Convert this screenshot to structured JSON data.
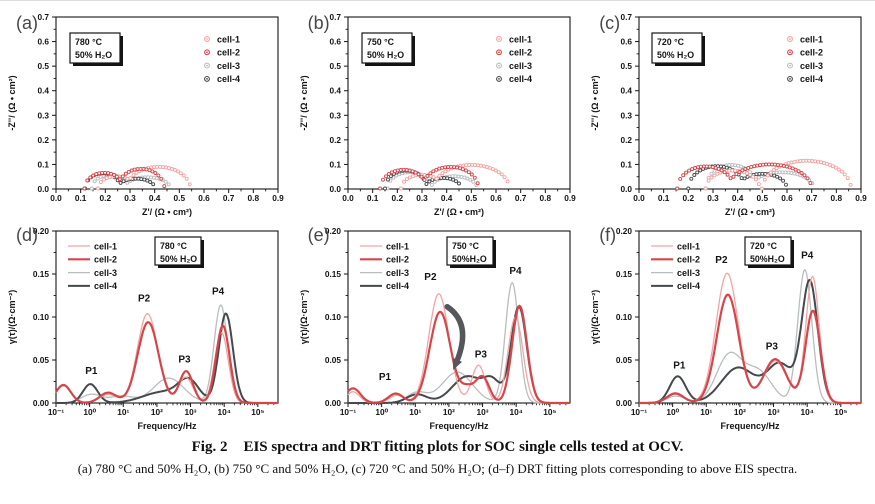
{
  "figure": {
    "caption_fig": "Fig. 2",
    "caption_title": "EIS spectra and DRT fitting plots for SOC single cells tested at OCV.",
    "caption_sub": "(a) 780 °C and 50% H₂O, (b) 750 °C and 50% H₂O, (c) 720 °C and 50% H₂O; (d–f) DRT fitting plots corresponding to above EIS spectra."
  },
  "colors": {
    "cell1": "#F2A5A3",
    "cell2": "#D5464B",
    "cell3": "#B8BDBF",
    "cell4": "#45494D",
    "arrow": "#54585C",
    "axis": "#141414"
  },
  "chart_data": [
    {
      "id": "a",
      "type": "scatter",
      "panel_label": "(a)",
      "title": "EIS spectra at 780 °C, 50% H₂O",
      "condition": [
        "780 °C",
        "50% H₂O"
      ],
      "box_x": 70,
      "xlabel": "Z'/ (Ω • cm²)",
      "ylabel": "-Z''/ (Ω • cm²)",
      "xlim": [
        0,
        0.9
      ],
      "ylim": [
        0,
        0.7
      ],
      "xticks": [
        "0.0",
        "0.1",
        "0.2",
        "0.3",
        "0.4",
        "0.5",
        "0.6",
        "0.7",
        "0.8",
        "0.9"
      ],
      "yticks": [
        "0.0",
        "0.1",
        "0.2",
        "0.3",
        "0.4",
        "0.5",
        "0.6",
        "0.7"
      ],
      "series": [
        {
          "name": "cell-1",
          "color": "cell1",
          "humps": [
            [
              0.245,
              0.075,
              0.052
            ],
            [
              0.415,
              0.13,
              0.09
            ]
          ]
        },
        {
          "name": "cell-2",
          "color": "cell2",
          "humps": [
            [
              0.195,
              0.08,
              0.066
            ],
            [
              0.345,
              0.095,
              0.082
            ]
          ]
        },
        {
          "name": "cell-3",
          "color": "cell3",
          "humps": [
            [
              0.22,
              0.075,
              0.058
            ],
            [
              0.37,
              0.095,
              0.048
            ]
          ]
        },
        {
          "name": "cell-4",
          "color": "cell4",
          "humps": [
            [
              0.19,
              0.072,
              0.064
            ],
            [
              0.325,
              0.078,
              0.042
            ]
          ]
        }
      ]
    },
    {
      "id": "b",
      "type": "scatter",
      "panel_label": "(b)",
      "title": "EIS spectra at 750 °C, 50% H₂O",
      "condition": [
        "750 °C",
        "50% H₂O"
      ],
      "box_x": 70,
      "xlabel": "Z'/ (Ω • cm²)",
      "ylabel": "-Z''/ (Ω • cm²)",
      "xlim": [
        0,
        0.9
      ],
      "ylim": [
        0,
        0.7
      ],
      "xticks": [
        "0.0",
        "0.1",
        "0.2",
        "0.3",
        "0.4",
        "0.5",
        "0.6",
        "0.7",
        "0.8",
        "0.9"
      ],
      "yticks": [
        "0.0",
        "0.1",
        "0.2",
        "0.3",
        "0.4",
        "0.5",
        "0.6",
        "0.7"
      ],
      "series": [
        {
          "name": "cell-1",
          "color": "cell1",
          "humps": [
            [
              0.3,
              0.085,
              0.058
            ],
            [
              0.5,
              0.155,
              0.098
            ]
          ]
        },
        {
          "name": "cell-2",
          "color": "cell2",
          "humps": [
            [
              0.225,
              0.095,
              0.078
            ],
            [
              0.415,
              0.115,
              0.09
            ]
          ]
        },
        {
          "name": "cell-3",
          "color": "cell3",
          "humps": [
            [
              0.25,
              0.09,
              0.068
            ],
            [
              0.43,
              0.095,
              0.052
            ]
          ]
        },
        {
          "name": "cell-4",
          "color": "cell4",
          "humps": [
            [
              0.235,
              0.085,
              0.075
            ],
            [
              0.385,
              0.075,
              0.045
            ]
          ]
        }
      ]
    },
    {
      "id": "c",
      "type": "scatter",
      "panel_label": "(c)",
      "title": "EIS spectra at 720 °C, 50% H₂O",
      "condition": [
        "720 °C",
        "50% H₂O"
      ],
      "box_x": 69,
      "xlabel": "Z'/ (Ω • cm²)",
      "ylabel": "-Z''/ (Ω • cm²)",
      "xlim": [
        0,
        0.9
      ],
      "ylim": [
        0,
        0.7
      ],
      "xticks": [
        "0.0",
        "0.1",
        "0.2",
        "0.3",
        "0.4",
        "0.5",
        "0.6",
        "0.7",
        "0.8",
        "0.9"
      ],
      "yticks": [
        "0.0",
        "0.1",
        "0.2",
        "0.3",
        "0.4",
        "0.5",
        "0.6",
        "0.7"
      ],
      "series": [
        {
          "name": "cell-1",
          "color": "cell1",
          "humps": [
            [
              0.38,
              0.11,
              0.075
            ],
            [
              0.68,
              0.18,
              0.115
            ]
          ]
        },
        {
          "name": "cell-2",
          "color": "cell2",
          "humps": [
            [
              0.27,
              0.115,
              0.092
            ],
            [
              0.53,
              0.17,
              0.1
            ]
          ]
        },
        {
          "name": "cell-3",
          "color": "cell3",
          "humps": [
            [
              0.375,
              0.105,
              0.098
            ],
            [
              0.58,
              0.13,
              0.068
            ]
          ]
        },
        {
          "name": "cell-4",
          "color": "cell4",
          "humps": [
            [
              0.315,
              0.115,
              0.093
            ],
            [
              0.5,
              0.1,
              0.062
            ]
          ]
        }
      ]
    },
    {
      "id": "d",
      "type": "line",
      "panel_label": "(d)",
      "title": "DRT fitting at 780 °C, 50% H₂O",
      "condition": [
        "780 °C",
        "50% H₂O"
      ],
      "box_x": 155,
      "xlabel": "Frequency/Hz",
      "ylabel": "γ(τ)/(Ω·cm⁻²)",
      "xrange": [
        -1,
        5.6
      ],
      "ylim": [
        0,
        0.2
      ],
      "xticks": [
        "10⁻¹",
        "10⁰",
        "10¹",
        "10²",
        "10³",
        "10⁴",
        "10⁵"
      ],
      "yticks": [
        "0.00",
        "0.05",
        "0.10",
        "0.15",
        "0.20"
      ],
      "peak_labels": [
        {
          "text": "P1",
          "x": 0.05,
          "y": 0.034
        },
        {
          "text": "P2",
          "x": 1.62,
          "y": 0.118
        },
        {
          "text": "P3",
          "x": 2.82,
          "y": 0.047
        },
        {
          "text": "P4",
          "x": 3.82,
          "y": 0.126
        }
      ],
      "series": [
        {
          "name": "cell-1",
          "color": "cell1",
          "w": 1.3,
          "peaks": [
            [
              -0.78,
              0.22,
              0.02
            ],
            [
              0.55,
              0.25,
              0.01
            ],
            [
              1.72,
              0.3,
              0.104
            ],
            [
              2.85,
              0.22,
              0.03
            ],
            [
              3.92,
              0.2,
              0.082
            ]
          ]
        },
        {
          "name": "cell-2",
          "color": "cell2",
          "w": 2.2,
          "peaks": [
            [
              -0.78,
              0.22,
              0.021
            ],
            [
              0.55,
              0.25,
              0.012
            ],
            [
              1.74,
              0.31,
              0.094
            ],
            [
              2.87,
              0.2,
              0.037
            ],
            [
              3.96,
              0.2,
              0.09
            ]
          ]
        },
        {
          "name": "cell-3",
          "color": "cell3",
          "w": 1.3,
          "peaks": [
            [
              0.05,
              0.3,
              0.01
            ],
            [
              0.95,
              0.35,
              0.008
            ],
            [
              2.35,
              0.45,
              0.029
            ],
            [
              3.9,
              0.2,
              0.114
            ]
          ]
        },
        {
          "name": "cell-4",
          "color": "cell4",
          "w": 2.0,
          "peaks": [
            [
              0.02,
              0.22,
              0.022
            ],
            [
              2.2,
              0.6,
              0.013
            ],
            [
              2.95,
              0.3,
              0.023
            ],
            [
              4.05,
              0.21,
              0.104
            ]
          ]
        }
      ]
    },
    {
      "id": "e",
      "type": "line",
      "panel_label": "(e)",
      "title": "DRT fitting at 750 °C, 50% H₂O",
      "condition": [
        "750 °C",
        "50%H₂O"
      ],
      "box_x": 155,
      "xlabel": "Frequency/Hz",
      "ylabel": "γ(τ)/(Ω·cm⁻²)",
      "xrange": [
        -1,
        5.6
      ],
      "ylim": [
        0,
        0.2
      ],
      "xticks": [
        "10⁻¹",
        "10⁰",
        "10¹",
        "10²",
        "10³",
        "10⁴",
        "10⁵"
      ],
      "yticks": [
        "0.00",
        "0.05",
        "0.10",
        "0.15",
        "0.20"
      ],
      "peak_labels": [
        {
          "text": "P1",
          "x": 0.1,
          "y": 0.027
        },
        {
          "text": "P2",
          "x": 1.45,
          "y": 0.143
        },
        {
          "text": "P3",
          "x": 2.95,
          "y": 0.053
        },
        {
          "text": "P4",
          "x": 3.98,
          "y": 0.15
        }
      ],
      "arrow": {
        "pts": [
          [
            1.95,
            0.112
          ],
          [
            2.7,
            0.092
          ],
          [
            2.22,
            0.047
          ]
        ]
      },
      "series": [
        {
          "name": "cell-1",
          "color": "cell1",
          "w": 1.3,
          "peaks": [
            [
              -0.85,
              0.2,
              0.013
            ],
            [
              0.45,
              0.22,
              0.009
            ],
            [
              1.7,
              0.3,
              0.127
            ],
            [
              2.88,
              0.2,
              0.044
            ],
            [
              3.98,
              0.22,
              0.1
            ]
          ]
        },
        {
          "name": "cell-2",
          "color": "cell2",
          "w": 2.2,
          "peaks": [
            [
              -0.85,
              0.22,
              0.017
            ],
            [
              0.42,
              0.22,
              0.011
            ],
            [
              1.74,
              0.31,
              0.106
            ],
            [
              2.55,
              0.2,
              0.016
            ],
            [
              3.0,
              0.2,
              0.03
            ],
            [
              4.1,
              0.22,
              0.113
            ]
          ]
        },
        {
          "name": "cell-3",
          "color": "cell3",
          "w": 1.3,
          "peaks": [
            [
              1.05,
              0.3,
              0.012
            ],
            [
              2.25,
              0.45,
              0.036
            ],
            [
              3.88,
              0.2,
              0.14
            ]
          ]
        },
        {
          "name": "cell-4",
          "color": "cell4",
          "w": 2.0,
          "peaks": [
            [
              1.05,
              0.3,
              0.01
            ],
            [
              2.55,
              0.45,
              0.031
            ],
            [
              3.3,
              0.25,
              0.022
            ],
            [
              4.08,
              0.23,
              0.112
            ]
          ]
        }
      ]
    },
    {
      "id": "f",
      "type": "line",
      "panel_label": "(f)",
      "title": "DRT fitting at 720 °C, 50% H₂O",
      "condition": [
        "720 °C",
        "50%H₂O"
      ],
      "box_x": 162,
      "xlabel": "Frequency/Hz",
      "ylabel": "γ(τ)/(Ω·cm⁻²)",
      "xrange": [
        -1,
        5.6
      ],
      "ylim": [
        0,
        0.2
      ],
      "xticks": [
        "10⁻¹",
        "10⁰",
        "10¹",
        "10²",
        "10³",
        "10⁴",
        "10⁵"
      ],
      "yticks": [
        "0.00",
        "0.05",
        "0.10",
        "0.15",
        "0.20"
      ],
      "peak_labels": [
        {
          "text": "P1",
          "x": 0.2,
          "y": 0.04
        },
        {
          "text": "P2",
          "x": 1.45,
          "y": 0.163
        },
        {
          "text": "P3",
          "x": 2.95,
          "y": 0.062
        },
        {
          "text": "P4",
          "x": 4.0,
          "y": 0.168
        }
      ],
      "series": [
        {
          "name": "cell-1",
          "color": "cell1",
          "w": 1.3,
          "peaks": [
            [
              0.08,
              0.25,
              0.012
            ],
            [
              1.62,
              0.33,
              0.151
            ],
            [
              3.05,
              0.35,
              0.049
            ],
            [
              4.16,
              0.2,
              0.147
            ]
          ]
        },
        {
          "name": "cell-2",
          "color": "cell2",
          "w": 2.2,
          "peaks": [
            [
              0.08,
              0.25,
              0.011
            ],
            [
              1.64,
              0.33,
              0.126
            ],
            [
              3.05,
              0.35,
              0.051
            ],
            [
              4.17,
              0.22,
              0.107
            ]
          ]
        },
        {
          "name": "cell-3",
          "color": "cell3",
          "w": 1.3,
          "peaks": [
            [
              0.1,
              0.28,
              0.008
            ],
            [
              1.68,
              0.38,
              0.055
            ],
            [
              2.55,
              0.4,
              0.036
            ],
            [
              3.93,
              0.21,
              0.155
            ]
          ]
        },
        {
          "name": "cell-4",
          "color": "cell4",
          "w": 2.0,
          "peaks": [
            [
              0.15,
              0.24,
              0.031
            ],
            [
              1.95,
              0.5,
              0.041
            ],
            [
              3.2,
              0.4,
              0.045
            ],
            [
              4.08,
              0.24,
              0.139
            ]
          ]
        }
      ]
    }
  ]
}
